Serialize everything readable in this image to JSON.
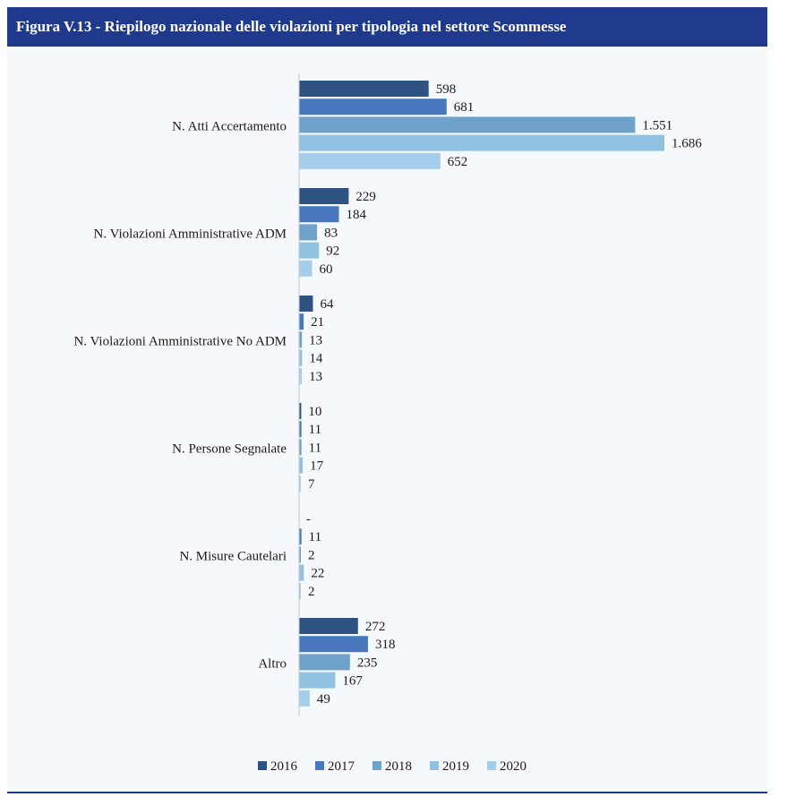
{
  "title": "Figura V.13 - Riepilogo nazionale delle violazioni per tipologia nel settore Scommesse",
  "chart_data": {
    "type": "bar",
    "orientation": "horizontal",
    "categories": [
      "N. Atti Accertamento",
      "N. Violazioni Amministrative ADM",
      "N. Violazioni Amministrative No ADM",
      "N. Persone Segnalate",
      "N. Misure Cautelari",
      "Altro"
    ],
    "series": [
      {
        "name": "2016",
        "color": "#2e5282",
        "values": [
          598,
          229,
          64,
          10,
          0,
          272
        ],
        "labels": [
          "598",
          "229",
          "64",
          "10",
          "-",
          "272"
        ]
      },
      {
        "name": "2017",
        "color": "#4a78bf",
        "values": [
          681,
          184,
          21,
          11,
          11,
          318
        ],
        "labels": [
          "681",
          "184",
          "21",
          "11",
          "11",
          "318"
        ]
      },
      {
        "name": "2018",
        "color": "#6ea2cb",
        "values": [
          1551,
          83,
          13,
          11,
          2,
          235
        ],
        "labels": [
          "1.551",
          "83",
          "13",
          "11",
          "2",
          "235"
        ]
      },
      {
        "name": "2019",
        "color": "#92c2e2",
        "values": [
          1686,
          92,
          14,
          17,
          22,
          167
        ],
        "labels": [
          "1.686",
          "92",
          "14",
          "17",
          "22",
          "167"
        ]
      },
      {
        "name": "2020",
        "color": "#a3cdea",
        "values": [
          652,
          60,
          13,
          7,
          2,
          49
        ],
        "labels": [
          "652",
          "60",
          "13",
          "7",
          "2",
          "49"
        ]
      }
    ],
    "xlim": [
      0,
      1700
    ],
    "grid": false,
    "legend_position": "bottom"
  }
}
